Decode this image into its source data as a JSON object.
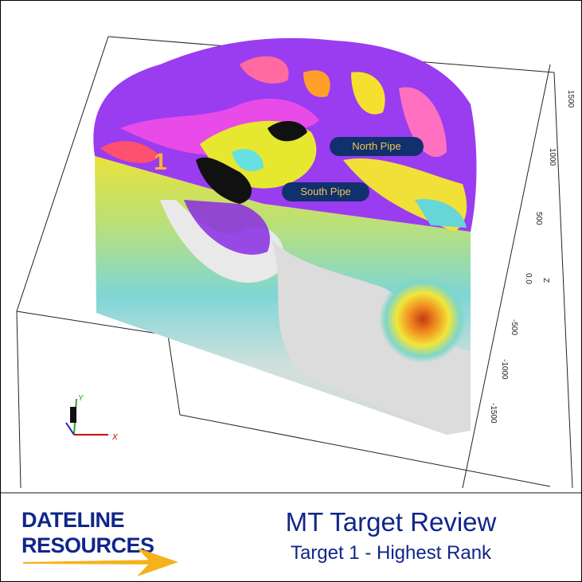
{
  "model": {
    "labels": {
      "north_pipe": "North Pipe",
      "south_pipe": "South Pipe",
      "target_number": "1"
    },
    "z_axis": {
      "label": "Z",
      "ticks": [
        "1500",
        "1000",
        "500",
        "0.0",
        "-500",
        "-1000",
        "-1500"
      ]
    },
    "triad": {
      "x": "X",
      "y": "Y"
    }
  },
  "footer": {
    "logo_line1": "DATELINE",
    "logo_line2": "RESOURCES",
    "title": "MT Target Review",
    "subtitle": "Target 1 - Highest Rank"
  },
  "colors": {
    "brand_blue": "#10268a",
    "arrow_gold": "#f5b21a",
    "pill_bg": "#10306e",
    "pill_text": "#f3c64a"
  }
}
